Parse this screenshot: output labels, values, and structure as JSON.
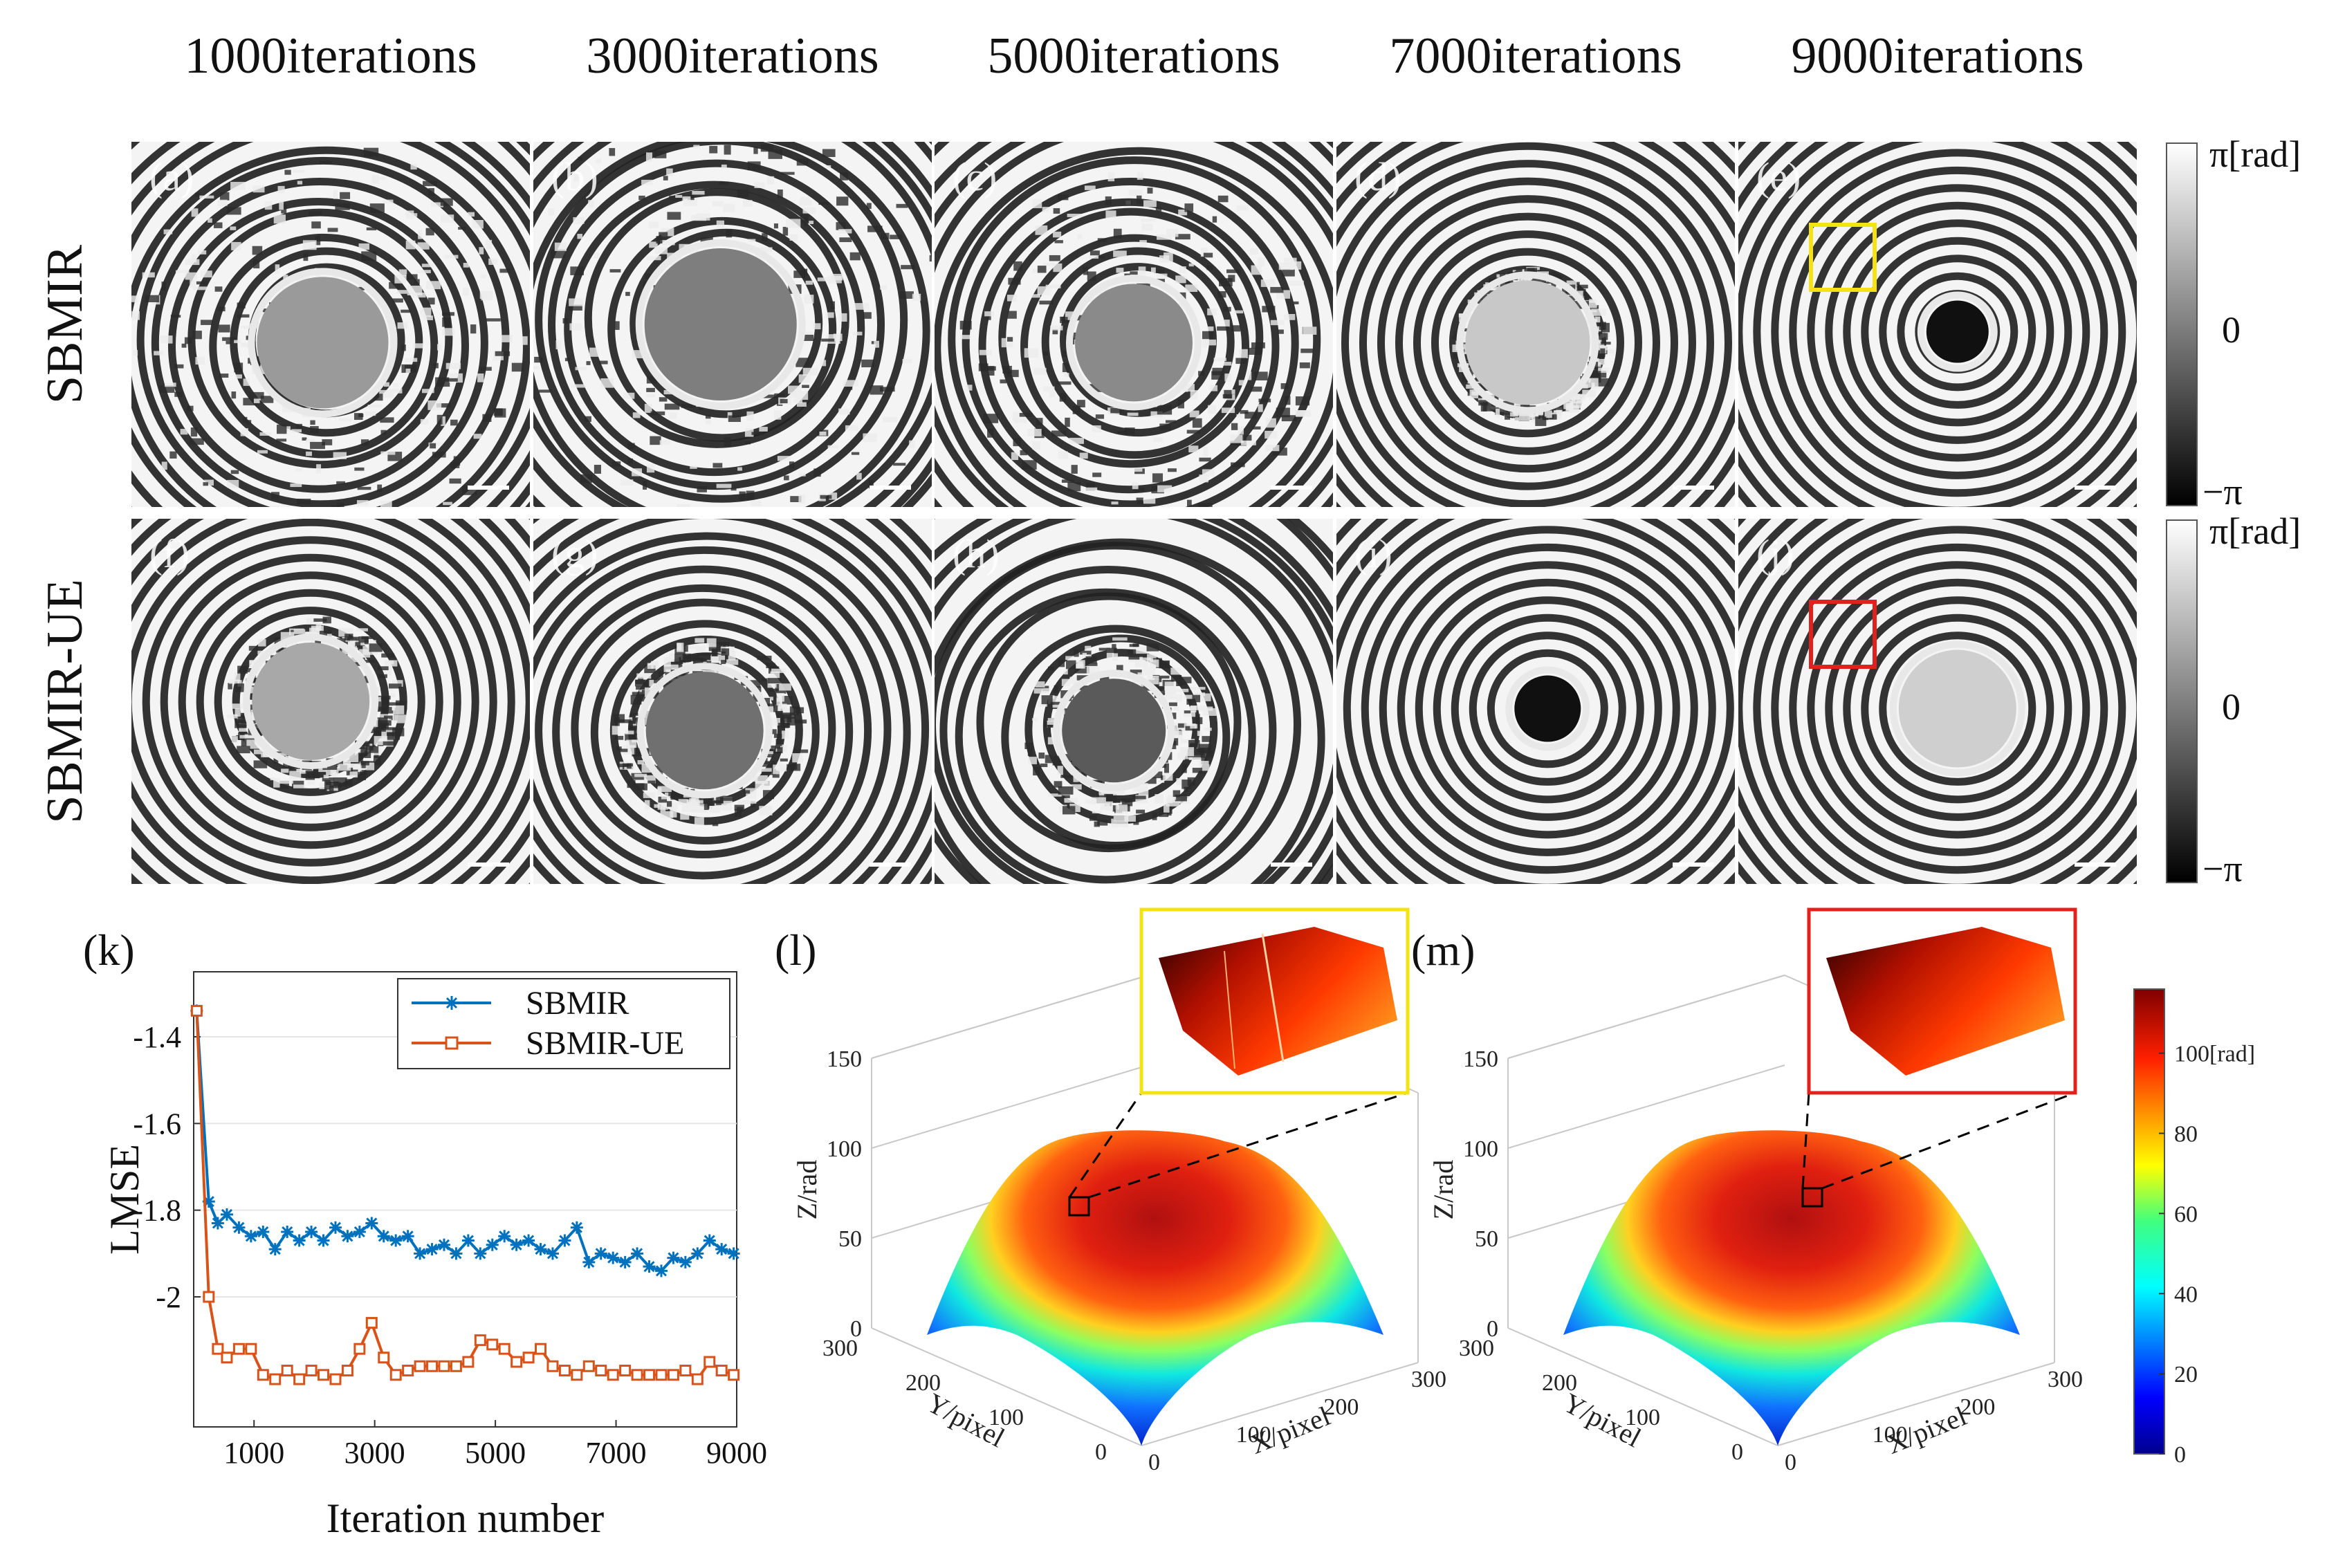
{
  "columns": [
    "1000iterations",
    "3000iterations",
    "5000iterations",
    "7000iterations",
    "9000iterations"
  ],
  "rows": [
    {
      "label": "SBMIR",
      "panels": [
        "(a)",
        "(b)",
        "(c)",
        "(d)",
        "(e)"
      ],
      "roi_color": "#f3e312"
    },
    {
      "label": "SBMIR-UE",
      "panels": [
        "(f)",
        "(g)",
        "(h)",
        "(i)",
        "(j)"
      ],
      "roi_color": "#e0211c"
    }
  ],
  "phase_colorbar": {
    "top": "π[rad]",
    "mid": "0",
    "bottom": "−π"
  },
  "chart_data": [
    {
      "type": "line",
      "panel": "(k)",
      "xlabel": "Iteration number",
      "ylabel": "LMSE",
      "xlim": [
        0,
        9000
      ],
      "ylim": [
        -2.3,
        -1.25
      ],
      "xticks": [
        "1000",
        "3000",
        "5000",
        "7000",
        "9000"
      ],
      "yticks": [
        "-1.4",
        "-1.6",
        "-1.8",
        "-2",
        ""
      ],
      "legend": "top-right",
      "series": [
        {
          "name": "SBMIR",
          "color": "#0072bd",
          "marker": "star",
          "x": [
            50,
            250,
            400,
            550,
            750,
            950,
            1150,
            1350,
            1550,
            1750,
            1950,
            2150,
            2350,
            2550,
            2750,
            2950,
            3150,
            3350,
            3550,
            3750,
            3950,
            4150,
            4350,
            4550,
            4750,
            4950,
            5150,
            5350,
            5550,
            5750,
            5950,
            6150,
            6350,
            6550,
            6750,
            6950,
            7150,
            7350,
            7550,
            7750,
            7950,
            8150,
            8350,
            8550,
            8750,
            8950
          ],
          "values": [
            -1.34,
            -1.78,
            -1.83,
            -1.81,
            -1.84,
            -1.86,
            -1.85,
            -1.89,
            -1.85,
            -1.87,
            -1.85,
            -1.87,
            -1.84,
            -1.86,
            -1.85,
            -1.83,
            -1.86,
            -1.87,
            -1.86,
            -1.9,
            -1.89,
            -1.88,
            -1.9,
            -1.87,
            -1.9,
            -1.88,
            -1.86,
            -1.88,
            -1.87,
            -1.89,
            -1.9,
            -1.87,
            -1.84,
            -1.92,
            -1.9,
            -1.91,
            -1.92,
            -1.9,
            -1.93,
            -1.94,
            -1.91,
            -1.92,
            -1.9,
            -1.87,
            -1.89,
            -1.9
          ]
        },
        {
          "name": "SBMIR-UE",
          "color": "#d95319",
          "marker": "square",
          "x": [
            50,
            250,
            400,
            550,
            750,
            950,
            1150,
            1350,
            1550,
            1750,
            1950,
            2150,
            2350,
            2550,
            2750,
            2950,
            3150,
            3350,
            3550,
            3750,
            3950,
            4150,
            4350,
            4550,
            4750,
            4950,
            5150,
            5350,
            5550,
            5750,
            5950,
            6150,
            6350,
            6550,
            6750,
            6950,
            7150,
            7350,
            7550,
            7750,
            7950,
            8150,
            8350,
            8550,
            8750,
            8950
          ],
          "values": [
            -1.34,
            -2.0,
            -2.12,
            -2.14,
            -2.12,
            -2.12,
            -2.18,
            -2.19,
            -2.17,
            -2.19,
            -2.17,
            -2.18,
            -2.19,
            -2.17,
            -2.12,
            -2.06,
            -2.14,
            -2.18,
            -2.17,
            -2.16,
            -2.16,
            -2.16,
            -2.16,
            -2.15,
            -2.1,
            -2.11,
            -2.12,
            -2.15,
            -2.14,
            -2.12,
            -2.16,
            -2.17,
            -2.18,
            -2.16,
            -2.17,
            -2.18,
            -2.17,
            -2.18,
            -2.18,
            -2.18,
            -2.18,
            -2.17,
            -2.19,
            -2.15,
            -2.17,
            -2.18
          ]
        }
      ]
    },
    {
      "type": "surface3d",
      "panel": "(l)",
      "zlabel": "Z/rad",
      "xlabel": "X/pixel",
      "ylabel": "Y/pixel",
      "zticks": [
        "0",
        "50",
        "100",
        "150"
      ],
      "xticks": [
        "0",
        "100",
        "200",
        "300"
      ],
      "yticks": [
        "300",
        "200",
        "100",
        "0"
      ]
    },
    {
      "type": "surface3d",
      "panel": "(m)",
      "zlabel": "Z/rad",
      "xlabel": "X/pixel",
      "ylabel": "Y/pixel",
      "zticks": [
        "0",
        "50",
        "100",
        "150"
      ],
      "xticks": [
        "0",
        "100",
        "200",
        "300"
      ],
      "yticks": [
        "300",
        "200",
        "100",
        "0"
      ]
    }
  ],
  "height_colorbar": {
    "ticks": [
      "0",
      "20",
      "40",
      "60",
      "80",
      "100[rad]"
    ]
  }
}
